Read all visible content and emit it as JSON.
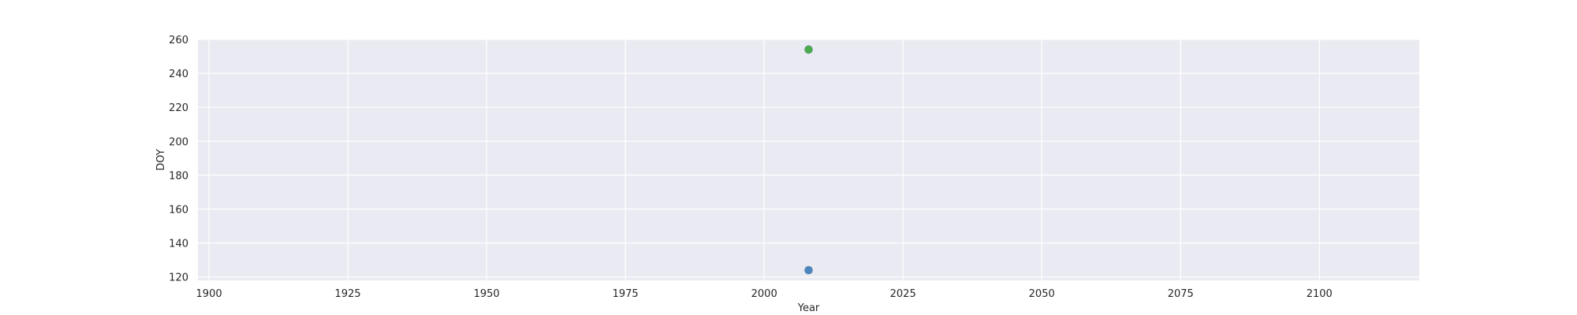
{
  "chart_data": {
    "type": "scatter",
    "title": "",
    "xlabel": "Year",
    "ylabel": "DOY",
    "xlim": [
      1898,
      2118
    ],
    "ylim": [
      118,
      260
    ],
    "x_ticks": [
      1900,
      1925,
      1950,
      1975,
      2000,
      2025,
      2050,
      2075,
      2100
    ],
    "y_ticks": [
      120,
      140,
      160,
      180,
      200,
      220,
      240,
      260
    ],
    "grid": true,
    "background_color": "#eaeaf2",
    "grid_color": "#ffffff",
    "series": [
      {
        "color": "#4a86c0",
        "points": [
          {
            "x": 2008,
            "y": 124
          }
        ]
      },
      {
        "color": "#4aac4a",
        "points": [
          {
            "x": 2008,
            "y": 254
          }
        ]
      }
    ]
  }
}
